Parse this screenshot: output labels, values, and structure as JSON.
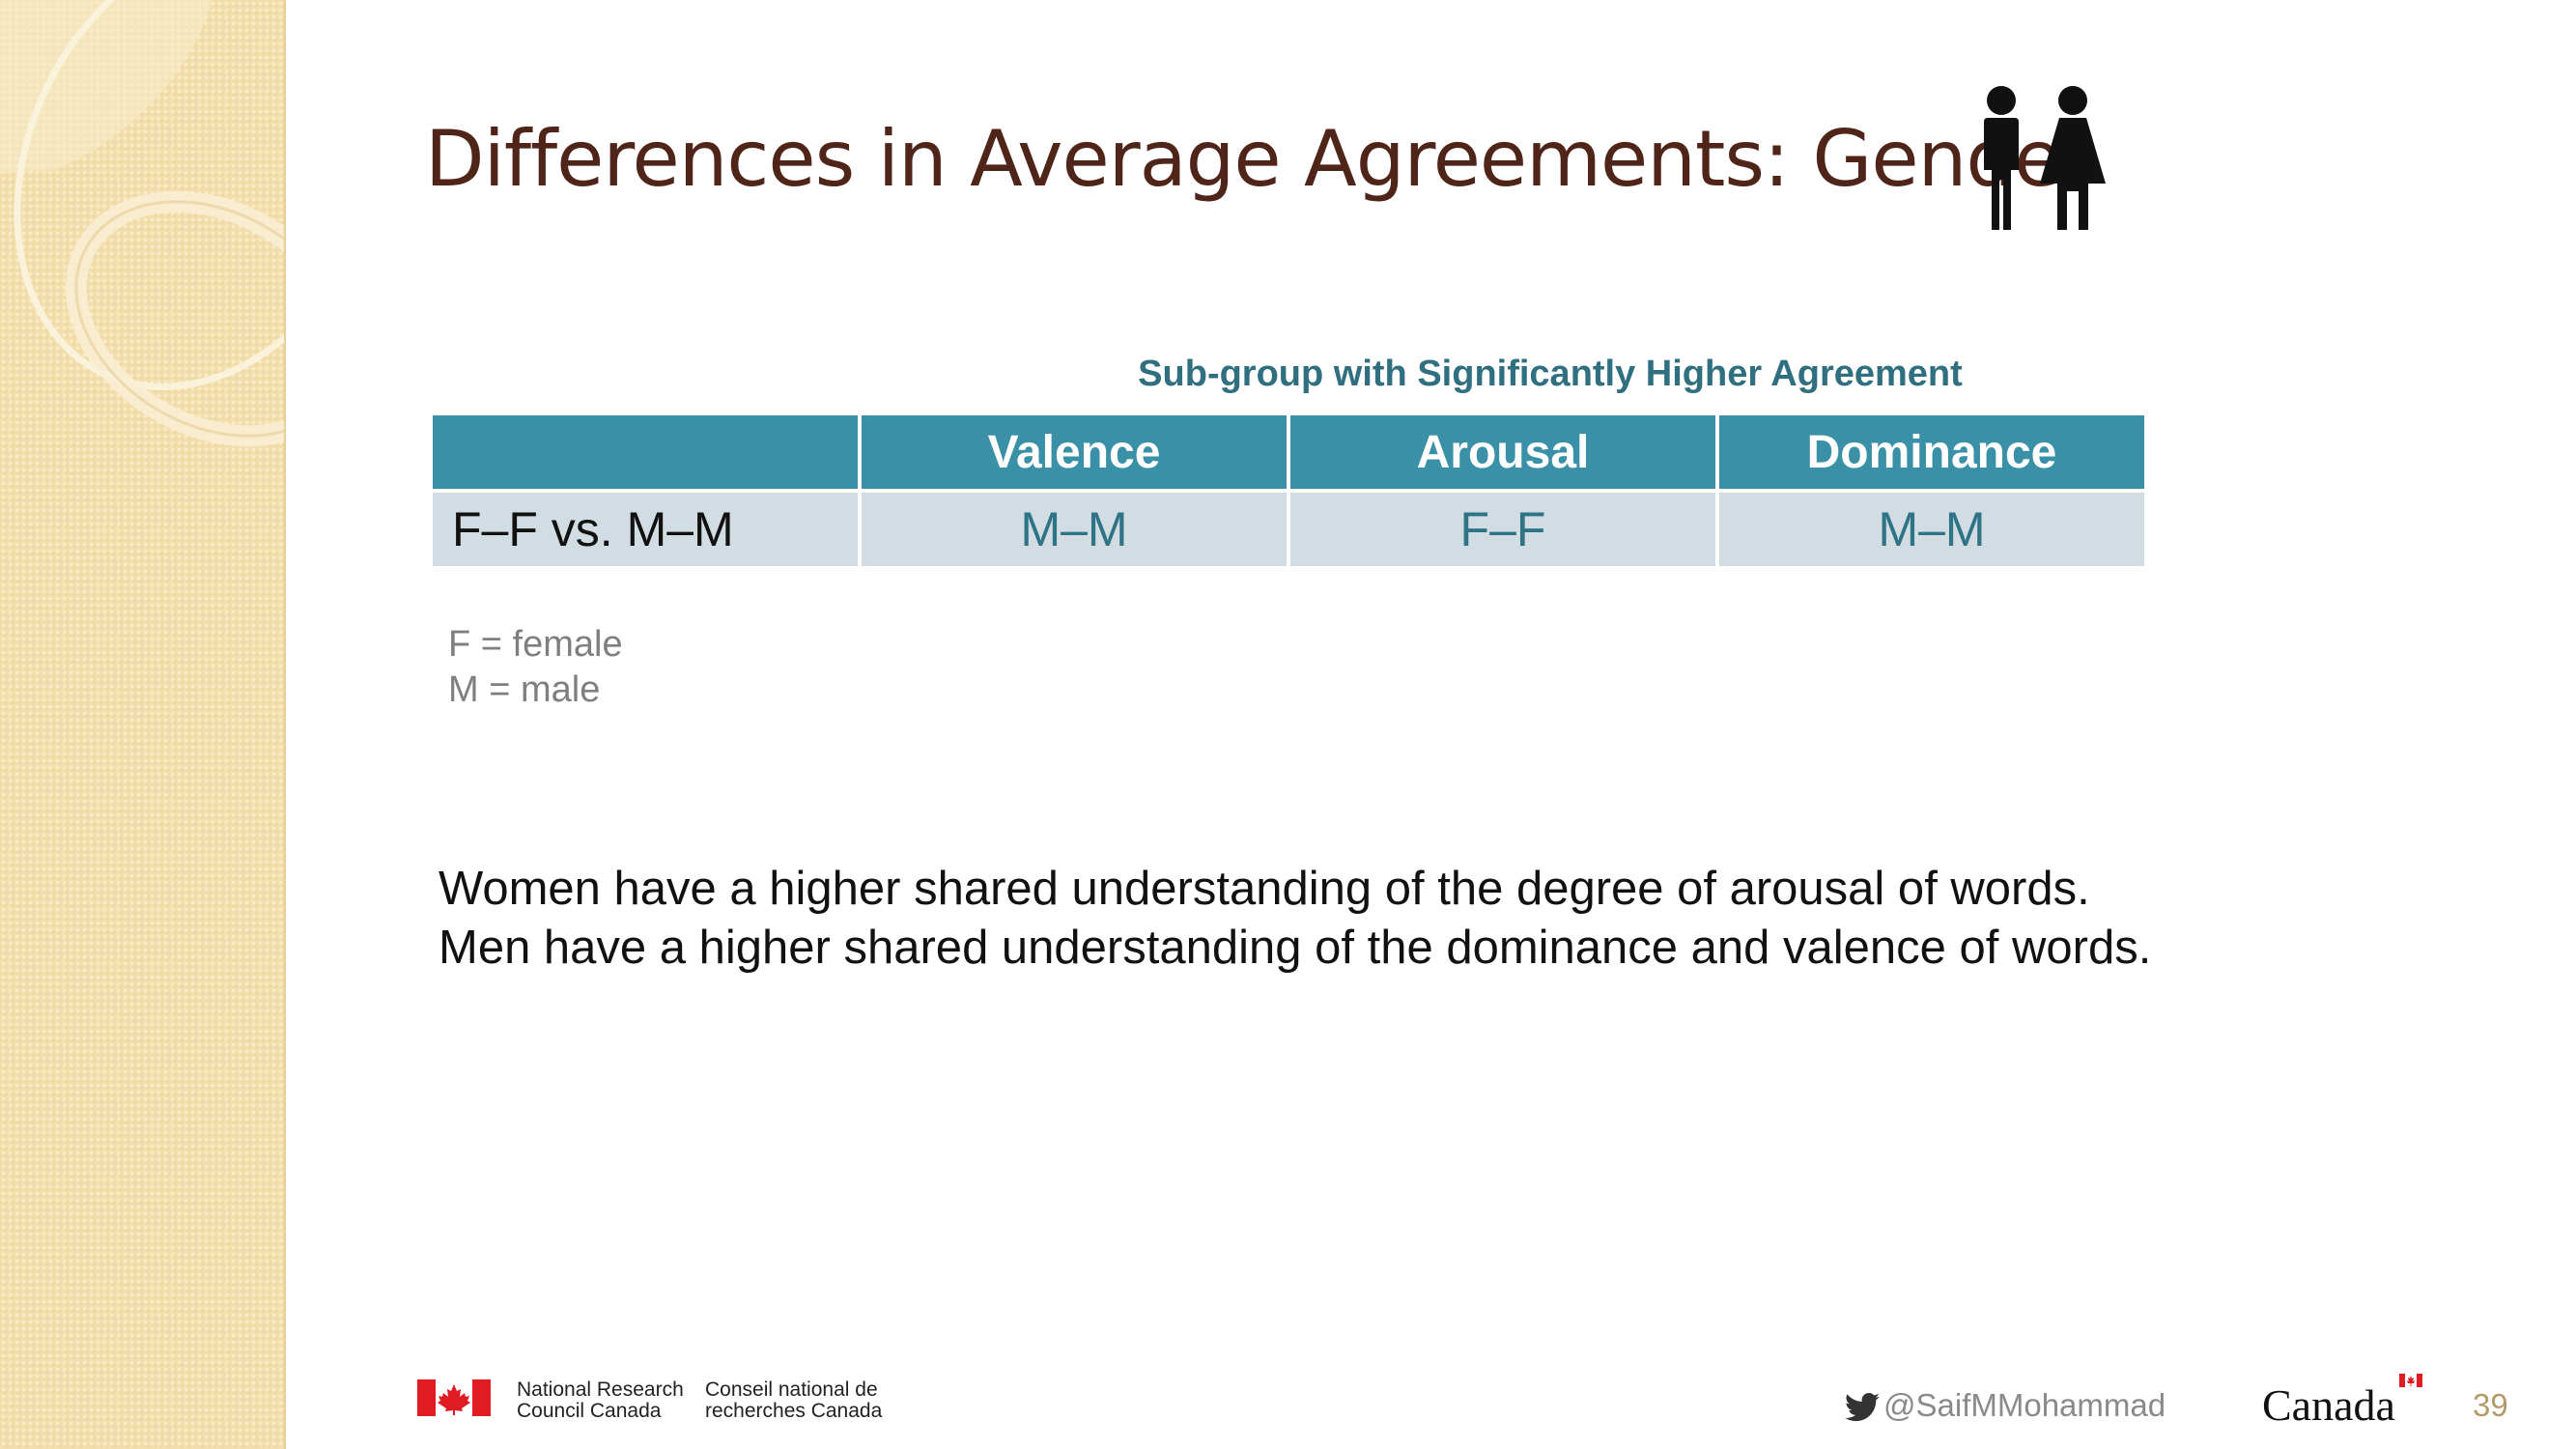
{
  "slide": {
    "title": "Differences in Average Agreements: Gender",
    "title_icon": "people-man-woman-icon",
    "table_caption": "Sub-group with Significantly Higher Agreement",
    "table": {
      "headers": [
        "",
        "Valence",
        "Arousal",
        "Dominance"
      ],
      "rows": [
        {
          "label": "F–F vs. M–M",
          "values": [
            "M–M",
            "F–F",
            "M–M"
          ]
        }
      ]
    },
    "legend": [
      "F = female",
      "M = male"
    ],
    "summary": [
      "Women have a higher shared understanding of the degree of arousal of words.",
      "Men have a higher shared understanding of the dominance and valence of words."
    ]
  },
  "footer": {
    "nrc_en_line1": "National Research",
    "nrc_en_line2": "Council Canada",
    "nrc_fr_line1": "Conseil national de",
    "nrc_fr_line2": "recherches Canada",
    "twitter_handle": "@SaifMMohammad",
    "canada_wordmark": "Canada",
    "page_number": "39"
  },
  "colors": {
    "title": "#4f2519",
    "header_fill": "#3a91a7",
    "row_fill": "#d1dde3",
    "caption": "#2f6f80",
    "sidebar": "#f3dfae"
  }
}
